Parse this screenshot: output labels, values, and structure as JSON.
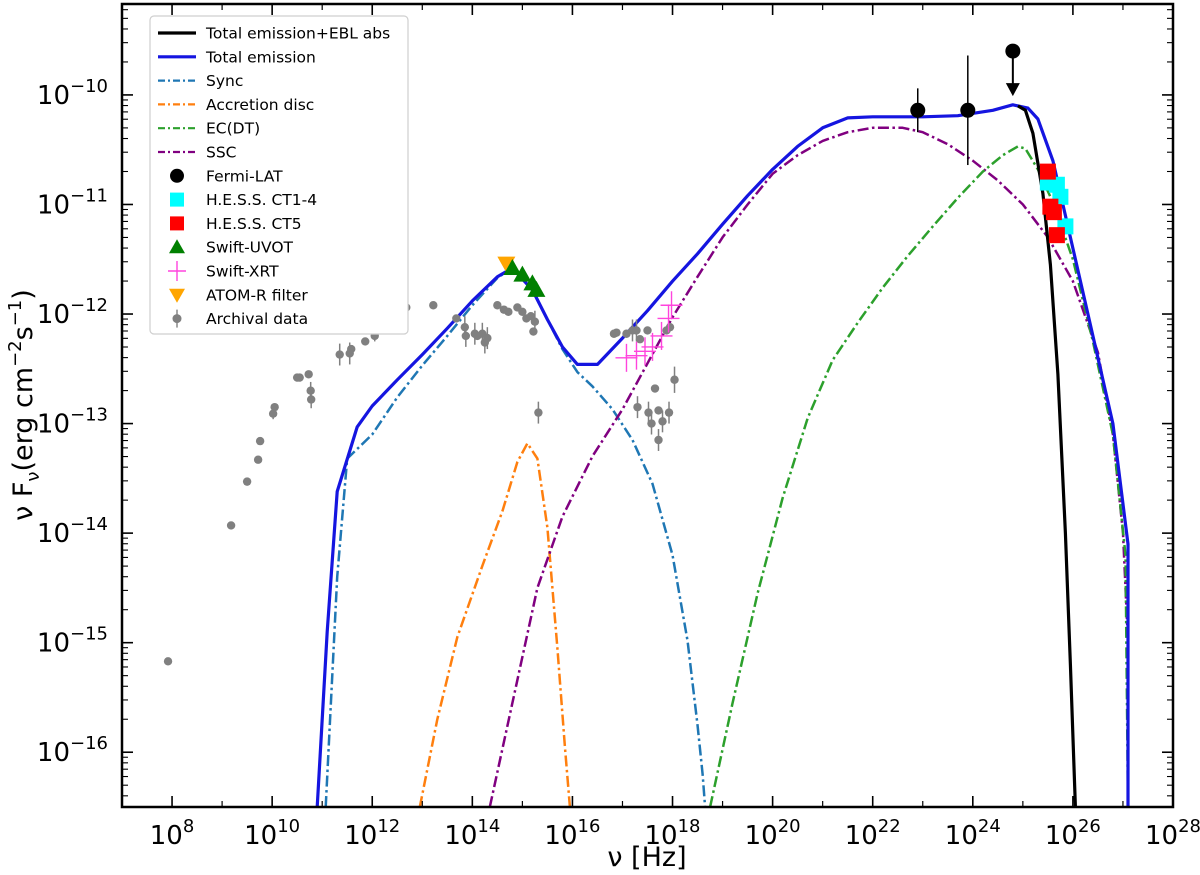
{
  "chart_data": {
    "type": "line",
    "title": "",
    "xlabel": "ν [Hz]",
    "ylabel_parts": {
      "base": "ν F",
      "sub": "ν",
      "unit_open": "(erg cm",
      "exp1": "−2",
      "mid": "s",
      "exp2": "−1",
      "unit_close": ")"
    },
    "xscale": "log",
    "yscale": "log",
    "xlim_log10": [
      7,
      28
    ],
    "ylim_log10": [
      -16.5,
      -9.17
    ],
    "x_ticks": [
      {
        "exp": 8,
        "base": "10",
        "sup": "8"
      },
      {
        "exp": 10,
        "base": "10",
        "sup": "10"
      },
      {
        "exp": 12,
        "base": "10",
        "sup": "12"
      },
      {
        "exp": 14,
        "base": "10",
        "sup": "14"
      },
      {
        "exp": 16,
        "base": "10",
        "sup": "16"
      },
      {
        "exp": 18,
        "base": "10",
        "sup": "18"
      },
      {
        "exp": 20,
        "base": "10",
        "sup": "20"
      },
      {
        "exp": 22,
        "base": "10",
        "sup": "22"
      },
      {
        "exp": 24,
        "base": "10",
        "sup": "24"
      },
      {
        "exp": 26,
        "base": "10",
        "sup": "26"
      },
      {
        "exp": 28,
        "base": "10",
        "sup": "28"
      }
    ],
    "y_ticks": [
      {
        "exp": -16,
        "base": "10",
        "sup": "−16"
      },
      {
        "exp": -15,
        "base": "10",
        "sup": "−15"
      },
      {
        "exp": -14,
        "base": "10",
        "sup": "−14"
      },
      {
        "exp": -13,
        "base": "10",
        "sup": "−13"
      },
      {
        "exp": -12,
        "base": "10",
        "sup": "−12"
      },
      {
        "exp": -11,
        "base": "10",
        "sup": "−11"
      },
      {
        "exp": -10,
        "base": "10",
        "sup": "−10"
      }
    ],
    "legend_position": "upper-left",
    "legend": [
      {
        "label": "Total emission+EBL abs",
        "kind": "line",
        "color": "#000000",
        "dash": "solid"
      },
      {
        "label": "Total emission",
        "kind": "line",
        "color": "#1515e0",
        "dash": "solid"
      },
      {
        "label": "Sync",
        "kind": "line",
        "color": "#1f77b4",
        "dash": "dashdot"
      },
      {
        "label": "Accretion disc",
        "kind": "line",
        "color": "#ff7f0e",
        "dash": "dashdot"
      },
      {
        "label": "EC(DT)",
        "kind": "line",
        "color": "#2ca02c",
        "dash": "dashdot"
      },
      {
        "label": "SSC",
        "kind": "line",
        "color": "#800080",
        "dash": "dashdot"
      },
      {
        "label": "Fermi-LAT",
        "kind": "circle",
        "color": "#000000"
      },
      {
        "label": "H.E.S.S. CT1-4",
        "kind": "square",
        "color": "#00ffff"
      },
      {
        "label": "H.E.S.S. CT5",
        "kind": "square",
        "color": "#ff0000"
      },
      {
        "label": "Swift-UVOT",
        "kind": "triangle-up",
        "color": "#008000"
      },
      {
        "label": "Swift-XRT",
        "kind": "plus",
        "color": "#ff44dd"
      },
      {
        "label": "ATOM-R filter",
        "kind": "triangle-down",
        "color": "#ffa500"
      },
      {
        "label": "Archival data",
        "kind": "circle-err",
        "color": "#808080"
      }
    ],
    "series": [
      {
        "name": "Sync",
        "color": "#1f77b4",
        "dash": "dashdot",
        "width": 2.5,
        "points": [
          [
            11.07,
            -16.5
          ],
          [
            11.3,
            -14.4
          ],
          [
            11.5,
            -13.32
          ],
          [
            12,
            -13.1
          ],
          [
            12.5,
            -12.76
          ],
          [
            13,
            -12.47
          ],
          [
            13.5,
            -12.2
          ],
          [
            14,
            -11.92
          ],
          [
            14.5,
            -11.67
          ],
          [
            14.8,
            -11.58
          ],
          [
            15.2,
            -11.78
          ],
          [
            15.5,
            -12.05
          ],
          [
            15.8,
            -12.32
          ],
          [
            16.1,
            -12.53
          ],
          [
            16.4,
            -12.66
          ],
          [
            16.8,
            -12.87
          ],
          [
            17.2,
            -13.15
          ],
          [
            17.6,
            -13.55
          ],
          [
            18,
            -14.2
          ],
          [
            18.3,
            -14.98
          ],
          [
            18.5,
            -15.75
          ],
          [
            18.6,
            -16.2
          ],
          [
            18.65,
            -16.5
          ]
        ]
      },
      {
        "name": "Accretion disc",
        "color": "#ff7f0e",
        "dash": "dashdot",
        "width": 2.5,
        "points": [
          [
            12.95,
            -16.5
          ],
          [
            13.3,
            -15.7
          ],
          [
            13.7,
            -14.95
          ],
          [
            14.2,
            -14.3
          ],
          [
            14.6,
            -13.8
          ],
          [
            14.9,
            -13.35
          ],
          [
            15.1,
            -13.18
          ],
          [
            15.3,
            -13.32
          ],
          [
            15.5,
            -13.95
          ],
          [
            15.7,
            -15.05
          ],
          [
            15.85,
            -15.95
          ],
          [
            15.95,
            -16.5
          ]
        ]
      },
      {
        "name": "SSC",
        "color": "#800080",
        "dash": "dashdot",
        "width": 2.5,
        "points": [
          [
            14.35,
            -16.5
          ],
          [
            14.8,
            -15.55
          ],
          [
            15.3,
            -14.5
          ],
          [
            15.8,
            -13.85
          ],
          [
            16.4,
            -13.3
          ],
          [
            17,
            -12.87
          ],
          [
            17.5,
            -12.45
          ],
          [
            18,
            -12.03
          ],
          [
            18.5,
            -11.66
          ],
          [
            19,
            -11.3
          ],
          [
            19.5,
            -11.0
          ],
          [
            20,
            -10.72
          ],
          [
            20.5,
            -10.55
          ],
          [
            21,
            -10.42
          ],
          [
            21.5,
            -10.34
          ],
          [
            22,
            -10.3
          ],
          [
            22.6,
            -10.3
          ],
          [
            23,
            -10.34
          ],
          [
            23.5,
            -10.45
          ],
          [
            24,
            -10.6
          ],
          [
            24.5,
            -10.78
          ],
          [
            25,
            -11.0
          ],
          [
            25.5,
            -11.3
          ],
          [
            26,
            -11.7
          ],
          [
            26.5,
            -12.35
          ],
          [
            26.8,
            -13.1
          ],
          [
            27,
            -14.0
          ],
          [
            27.1,
            -15.0
          ],
          [
            27.1,
            -16.5
          ]
        ]
      },
      {
        "name": "EC(DT)",
        "color": "#2ca02c",
        "dash": "dashdot",
        "width": 2.5,
        "points": [
          [
            18.75,
            -16.5
          ],
          [
            19.2,
            -15.55
          ],
          [
            19.7,
            -14.55
          ],
          [
            20.2,
            -13.68
          ],
          [
            20.7,
            -12.95
          ],
          [
            21.2,
            -12.42
          ],
          [
            21.7,
            -12.08
          ],
          [
            22.2,
            -11.76
          ],
          [
            22.7,
            -11.47
          ],
          [
            23.2,
            -11.2
          ],
          [
            23.7,
            -10.94
          ],
          [
            24.2,
            -10.7
          ],
          [
            24.6,
            -10.55
          ],
          [
            24.9,
            -10.47
          ],
          [
            25.05,
            -10.49
          ],
          [
            25.3,
            -10.68
          ],
          [
            25.6,
            -10.98
          ],
          [
            26,
            -11.5
          ],
          [
            26.4,
            -12.25
          ],
          [
            26.8,
            -13.1
          ],
          [
            27.05,
            -14.2
          ],
          [
            27.1,
            -16.5
          ]
        ]
      },
      {
        "name": "Total emission",
        "color": "#1515e0",
        "dash": "solid",
        "width": 3.2,
        "points": [
          [
            10.9,
            -16.5
          ],
          [
            11.1,
            -14.9
          ],
          [
            11.3,
            -13.62
          ],
          [
            11.7,
            -13.03
          ],
          [
            12,
            -12.84
          ],
          [
            12.5,
            -12.6
          ],
          [
            13,
            -12.37
          ],
          [
            13.5,
            -12.13
          ],
          [
            14,
            -11.88
          ],
          [
            14.5,
            -11.66
          ],
          [
            14.8,
            -11.58
          ],
          [
            15.2,
            -11.78
          ],
          [
            15.5,
            -12.05
          ],
          [
            15.8,
            -12.3
          ],
          [
            16.1,
            -12.46
          ],
          [
            16.5,
            -12.46
          ],
          [
            17,
            -12.22
          ],
          [
            17.5,
            -11.97
          ],
          [
            18,
            -11.7
          ],
          [
            18.5,
            -11.45
          ],
          [
            19,
            -11.18
          ],
          [
            19.5,
            -10.92
          ],
          [
            20,
            -10.68
          ],
          [
            20.5,
            -10.47
          ],
          [
            21,
            -10.3
          ],
          [
            21.5,
            -10.21
          ],
          [
            22,
            -10.2
          ],
          [
            23,
            -10.2
          ],
          [
            23.7,
            -10.19
          ],
          [
            24.4,
            -10.14
          ],
          [
            24.8,
            -10.09
          ],
          [
            25.1,
            -10.12
          ],
          [
            25.3,
            -10.22
          ],
          [
            25.6,
            -10.6
          ],
          [
            26,
            -11.4
          ],
          [
            26.4,
            -12.2
          ],
          [
            26.8,
            -13.0
          ],
          [
            27.1,
            -14.1
          ],
          [
            27.1,
            -16.5
          ]
        ]
      },
      {
        "name": "Total emission+EBL abs",
        "color": "#000000",
        "dash": "solid",
        "width": 3.2,
        "points": [
          [
            24.9,
            -10.1
          ],
          [
            25.05,
            -10.14
          ],
          [
            25.2,
            -10.35
          ],
          [
            25.4,
            -10.9
          ],
          [
            25.55,
            -11.55
          ],
          [
            25.7,
            -12.55
          ],
          [
            25.85,
            -14.0
          ],
          [
            25.95,
            -15.2
          ],
          [
            26.05,
            -16.5
          ]
        ]
      }
    ],
    "fermi_lat": {
      "color": "#000000",
      "points": [
        [
          22.9,
          -10.14,
          0.2
        ],
        [
          23.9,
          -10.14,
          0.5
        ]
      ],
      "upper_limit": [
        24.8,
        -9.6
      ]
    },
    "hess_ct14": {
      "color": "#00ffff",
      "points": [
        [
          25.5,
          -10.8
        ],
        [
          25.68,
          -10.82
        ],
        [
          25.75,
          -10.93
        ],
        [
          25.85,
          -11.2
        ]
      ]
    },
    "hess_ct5": {
      "color": "#ff0000",
      "points": [
        [
          25.5,
          -10.7
        ],
        [
          25.55,
          -11.02
        ],
        [
          25.62,
          -11.07
        ],
        [
          25.68,
          -11.28
        ]
      ]
    },
    "swift_uvot": {
      "color": "#008000",
      "points": [
        [
          14.8,
          -11.58
        ],
        [
          15,
          -11.64
        ],
        [
          15.2,
          -11.72
        ],
        [
          15.28,
          -11.78
        ]
      ]
    },
    "atom_r": {
      "color": "#ffa500",
      "points": [
        [
          14.68,
          -11.54
        ]
      ]
    },
    "swift_xrt": {
      "color": "#ff44dd",
      "points": [
        [
          17.08,
          -12.4
        ],
        [
          17.28,
          -12.38
        ],
        [
          17.45,
          -12.34
        ],
        [
          17.6,
          -12.3
        ],
        [
          17.78,
          -12.2
        ],
        [
          17.92,
          -12.04
        ],
        [
          17.98,
          -11.92
        ]
      ]
    },
    "archival": {
      "color": "#808080",
      "points": [
        [
          7.92,
          -15.17,
          0
        ],
        [
          9.18,
          -13.93,
          0
        ],
        [
          9.5,
          -13.53,
          0
        ],
        [
          9.72,
          -13.33,
          0
        ],
        [
          9.76,
          -13.16,
          0
        ],
        [
          10.02,
          -12.91,
          0.05
        ],
        [
          10.05,
          -12.85,
          0
        ],
        [
          10.5,
          -12.58,
          0
        ],
        [
          10.55,
          -12.58,
          0
        ],
        [
          10.73,
          -12.55,
          0
        ],
        [
          10.77,
          -12.7,
          0.08
        ],
        [
          10.78,
          -12.78,
          0.08
        ],
        [
          11.35,
          -12.37,
          0.1
        ],
        [
          11.55,
          -12.36,
          0.1
        ],
        [
          11.58,
          -12.32,
          0
        ],
        [
          11.86,
          -12.25,
          0
        ],
        [
          12.05,
          -12.2,
          0.05
        ],
        [
          12.12,
          -12.15,
          0
        ],
        [
          12.68,
          -11.94,
          0.1
        ],
        [
          13.22,
          -11.92,
          0
        ],
        [
          13.68,
          -12.04,
          0
        ],
        [
          13.85,
          -12.12,
          0.1
        ],
        [
          13.87,
          -12.2,
          0.1
        ],
        [
          14.05,
          -12.18,
          0.1
        ],
        [
          14.1,
          -12.2,
          0
        ],
        [
          14.2,
          -12.18,
          0.1
        ],
        [
          14.25,
          -12.26,
          0.1
        ],
        [
          14.3,
          -12.22,
          0.1
        ],
        [
          14.5,
          -11.92,
          0
        ],
        [
          14.63,
          -11.96,
          0
        ],
        [
          14.72,
          -11.98,
          0
        ],
        [
          14.9,
          -11.94,
          0
        ],
        [
          15.0,
          -11.98,
          0
        ],
        [
          15.08,
          -12.04,
          0
        ],
        [
          15.17,
          -12.02,
          0
        ],
        [
          15.25,
          -12.07,
          0.1
        ],
        [
          15.22,
          -12.16,
          0
        ],
        [
          15.32,
          -12.9,
          0.1
        ],
        [
          16.83,
          -12.18,
          0
        ],
        [
          16.88,
          -12.17,
          0
        ],
        [
          17.08,
          -12.18,
          0
        ],
        [
          17.2,
          -12.15,
          0.1
        ],
        [
          17.28,
          -12.15,
          0.1
        ],
        [
          17.3,
          -12.85,
          0.1
        ],
        [
          17.35,
          -12.23,
          0
        ],
        [
          17.5,
          -12.15,
          0
        ],
        [
          17.52,
          -12.9,
          0.1
        ],
        [
          17.58,
          -13.0,
          0.1
        ],
        [
          17.65,
          -12.68,
          0
        ],
        [
          17.72,
          -12.88,
          0
        ],
        [
          17.72,
          -13.15,
          0.1
        ],
        [
          17.8,
          -12.98,
          0.1
        ],
        [
          17.88,
          -12.15,
          0
        ],
        [
          17.93,
          -12.9,
          0.1
        ],
        [
          17.95,
          -12.12,
          0
        ],
        [
          18.04,
          -12.6,
          0.12
        ]
      ]
    }
  }
}
